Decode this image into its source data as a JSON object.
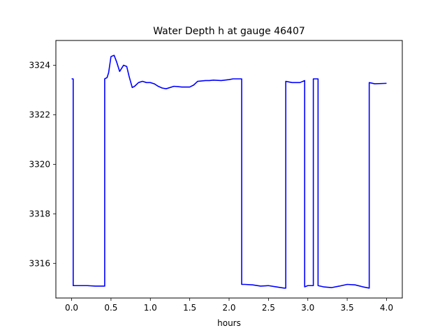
{
  "chart_data": {
    "type": "line",
    "title": "Water Depth h at gauge 46407",
    "xlabel": "hours",
    "ylabel": "",
    "xlim": [
      -0.2,
      4.2
    ],
    "ylim": [
      3314.6,
      3325.0
    ],
    "xticks": [
      0.0,
      0.5,
      1.0,
      1.5,
      2.0,
      2.5,
      3.0,
      3.5,
      4.0
    ],
    "xtick_labels": [
      "0.0",
      "0.5",
      "1.0",
      "1.5",
      "2.0",
      "2.5",
      "3.0",
      "3.5",
      "4.0"
    ],
    "yticks": [
      3316,
      3318,
      3320,
      3322,
      3324
    ],
    "ytick_labels": [
      "3316",
      "3318",
      "3320",
      "3322",
      "3324"
    ],
    "grid": false,
    "series": [
      {
        "color": "#0000ff",
        "x": [
          0.0,
          0.02,
          0.02,
          0.1,
          0.2,
          0.3,
          0.35,
          0.41,
          0.42,
          0.42,
          0.45,
          0.47,
          0.5,
          0.54,
          0.57,
          0.61,
          0.63,
          0.66,
          0.7,
          0.73,
          0.77,
          0.8,
          0.85,
          0.9,
          0.95,
          1.0,
          1.05,
          1.1,
          1.15,
          1.2,
          1.3,
          1.4,
          1.5,
          1.55,
          1.6,
          1.7,
          1.75,
          1.8,
          1.9,
          2.0,
          2.05,
          2.1,
          2.16,
          2.16,
          2.2,
          2.3,
          2.4,
          2.5,
          2.6,
          2.7,
          2.72,
          2.72,
          2.8,
          2.9,
          2.96,
          2.96,
          3.0,
          3.07,
          3.07,
          3.08,
          3.13,
          3.13,
          3.2,
          3.3,
          3.4,
          3.5,
          3.6,
          3.7,
          3.78,
          3.78,
          3.85,
          4.0
        ],
        "y": [
          3323.45,
          3323.45,
          3315.1,
          3315.1,
          3315.1,
          3315.08,
          3315.08,
          3315.08,
          3315.08,
          3323.45,
          3323.5,
          3323.7,
          3324.35,
          3324.4,
          3324.15,
          3323.75,
          3323.85,
          3324.0,
          3323.95,
          3323.55,
          3323.1,
          3323.15,
          3323.3,
          3323.35,
          3323.3,
          3323.3,
          3323.25,
          3323.15,
          3323.08,
          3323.05,
          3323.15,
          3323.12,
          3323.12,
          3323.2,
          3323.35,
          3323.38,
          3323.38,
          3323.4,
          3323.38,
          3323.42,
          3323.45,
          3323.45,
          3323.45,
          3315.15,
          3315.15,
          3315.13,
          3315.08,
          3315.1,
          3315.05,
          3315.0,
          3315.0,
          3323.35,
          3323.3,
          3323.3,
          3323.38,
          3315.05,
          3315.1,
          3315.1,
          3323.45,
          3323.45,
          3323.45,
          3315.1,
          3315.05,
          3315.02,
          3315.08,
          3315.15,
          3315.13,
          3315.05,
          3315.0,
          3323.3,
          3323.25,
          3323.27
        ]
      }
    ]
  }
}
